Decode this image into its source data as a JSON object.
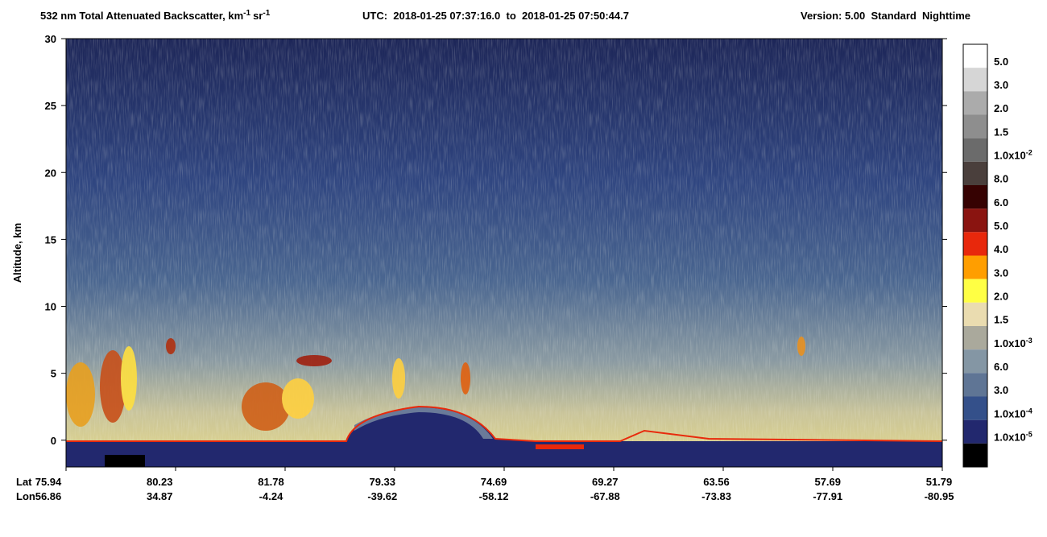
{
  "chart_data": {
    "type": "heatmap",
    "title": [
      "532 nm Total Attenuated Backscatter, km",
      "-1",
      "sr",
      "-1"
    ],
    "utc": "UTC:  2018-01-25 07:37:16.0  to  2018-01-25 07:50:44.7",
    "version": "Version: 5.00  Standard  Nighttime",
    "y_label": "Altitude, km",
    "ylim": [
      -2,
      30
    ],
    "yticks": [
      0,
      5,
      10,
      15,
      20,
      25,
      30
    ],
    "x_rows": [
      {
        "name": "Lat",
        "values": [
          75.94,
          80.23,
          81.78,
          79.33,
          74.69,
          69.27,
          63.56,
          57.69,
          51.79
        ]
      },
      {
        "name": "Lon",
        "values": [
          56.86,
          34.87,
          -4.24,
          -39.62,
          -58.12,
          -67.88,
          -73.83,
          -77.91,
          -80.95
        ]
      }
    ],
    "colorbar": {
      "colors": [
        "#ffffff",
        "#d6d6d6",
        "#ababab",
        "#8e8e8e",
        "#6b6b6b",
        "#4a3f3c",
        "#360202",
        "#8a1410",
        "#e8280c",
        "#ff9e00",
        "#ffff44",
        "#eadcb0",
        "#aaa99c",
        "#8496a4",
        "#5f7595",
        "#34508a",
        "#22286e",
        "#000000"
      ],
      "labels": [
        "5.0",
        "3.0",
        "2.0",
        "1.5",
        {
          "text": "1.0x10",
          "sup": "-2"
        },
        "8.0",
        "6.0",
        "5.0",
        "4.0",
        "3.0",
        "2.0",
        "1.5",
        {
          "text": "1.0x10",
          "sup": "-3"
        },
        "6.0",
        "3.0",
        {
          "text": "1.0x10",
          "sup": "-4"
        },
        {
          "text": "1.0x10",
          "sup": "-5"
        }
      ]
    }
  }
}
